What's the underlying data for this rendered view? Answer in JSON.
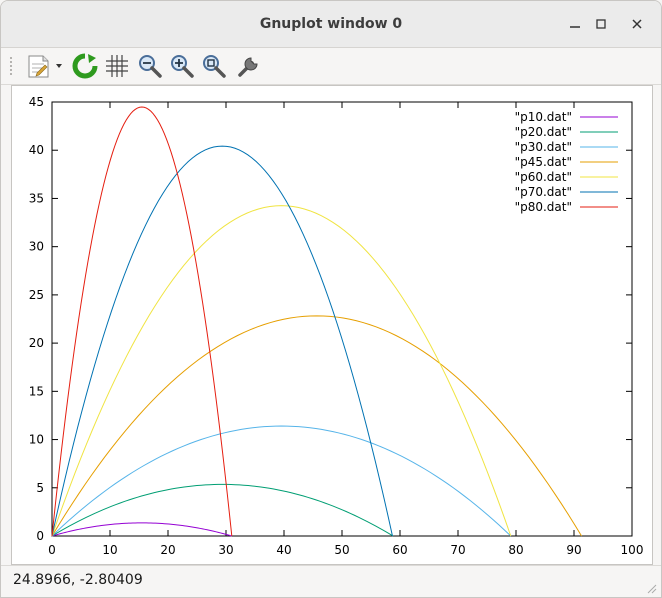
{
  "window": {
    "title": "Gnuplot window 0",
    "controls": [
      "minimize-icon",
      "maximize-icon",
      "close-icon"
    ]
  },
  "toolbar": {
    "items": [
      "export-icon",
      "replot-icon",
      "grid-icon",
      "zoom-out-icon",
      "zoom-in-icon",
      "autoscale-icon",
      "settings-icon"
    ]
  },
  "status": {
    "coordinates": "24.8966, -2.80409"
  },
  "colors": {
    "p10": "#9400d3",
    "p20": "#009e73",
    "p30": "#56b4e9",
    "p45": "#e69f00",
    "p60": "#f0e442",
    "p70": "#0072b2",
    "p80": "#e51e10"
  },
  "chart_data": {
    "type": "line",
    "title": "",
    "xlabel": "",
    "ylabel": "",
    "xlim": [
      0,
      100
    ],
    "ylim": [
      0,
      45
    ],
    "xticks": [
      "0",
      "10",
      "20",
      "30",
      "40",
      "50",
      "60",
      "70",
      "80",
      "90",
      "100"
    ],
    "yticks": [
      "0",
      "5",
      "10",
      "15",
      "20",
      "25",
      "30",
      "35",
      "40",
      "45"
    ],
    "grid": false,
    "legend_position": "top-right",
    "series": [
      {
        "name": "\"p10.dat\"",
        "color": "#9400d3",
        "x": [
          0,
          3.1,
          6.2,
          9.3,
          12.4,
          15.5,
          18.6,
          21.7,
          24.8,
          27.9,
          31.0
        ],
        "y": [
          0,
          0.49,
          0.87,
          1.14,
          1.3,
          1.36,
          1.3,
          1.14,
          0.87,
          0.49,
          0
        ]
      },
      {
        "name": "\"p20.dat\"",
        "color": "#009e73",
        "x": [
          0,
          5.9,
          11.8,
          17.6,
          23.5,
          29.4,
          35.3,
          41.2,
          47.0,
          52.9,
          58.8
        ],
        "y": [
          0,
          1.93,
          3.43,
          4.5,
          5.14,
          5.35,
          5.14,
          4.5,
          3.43,
          1.93,
          0
        ]
      },
      {
        "name": "\"p30.dat\"",
        "color": "#56b4e9",
        "x": [
          0,
          7.9,
          15.8,
          23.7,
          31.6,
          39.5,
          47.5,
          55.4,
          63.3,
          71.2,
          79.1
        ],
        "y": [
          0,
          4.1,
          7.3,
          9.58,
          10.95,
          11.4,
          10.95,
          9.58,
          7.3,
          4.1,
          0
        ]
      },
      {
        "name": "\"p45.dat\"",
        "color": "#e69f00",
        "x": [
          0,
          9.1,
          18.3,
          27.4,
          36.5,
          45.7,
          54.8,
          63.9,
          73.1,
          82.2,
          91.3
        ],
        "y": [
          0,
          8.22,
          14.61,
          19.17,
          21.91,
          22.83,
          21.91,
          19.17,
          14.61,
          8.22,
          0
        ]
      },
      {
        "name": "\"p60.dat\"",
        "color": "#f0e442",
        "x": [
          0,
          7.9,
          15.8,
          23.7,
          31.6,
          39.5,
          47.5,
          55.4,
          63.3,
          71.2,
          79.1
        ],
        "y": [
          0,
          12.33,
          21.92,
          28.77,
          32.88,
          34.25,
          32.88,
          28.77,
          21.92,
          12.33,
          0
        ]
      },
      {
        "name": "\"p70.dat\"",
        "color": "#0072b2",
        "x": [
          0,
          5.9,
          11.7,
          17.6,
          23.5,
          29.3,
          35.2,
          41.1,
          46.9,
          52.8,
          58.7
        ],
        "y": [
          0,
          14.55,
          25.87,
          33.96,
          38.81,
          40.43,
          38.81,
          33.96,
          25.87,
          14.55,
          0
        ]
      },
      {
        "name": "\"p80.dat\"",
        "color": "#e51e10",
        "x": [
          0,
          3.1,
          6.2,
          9.3,
          12.4,
          15.5,
          18.6,
          21.7,
          24.8,
          27.9,
          31.0
        ],
        "y": [
          0,
          16.01,
          28.46,
          37.36,
          42.7,
          44.48,
          42.7,
          37.36,
          28.46,
          16.01,
          0
        ]
      }
    ]
  }
}
